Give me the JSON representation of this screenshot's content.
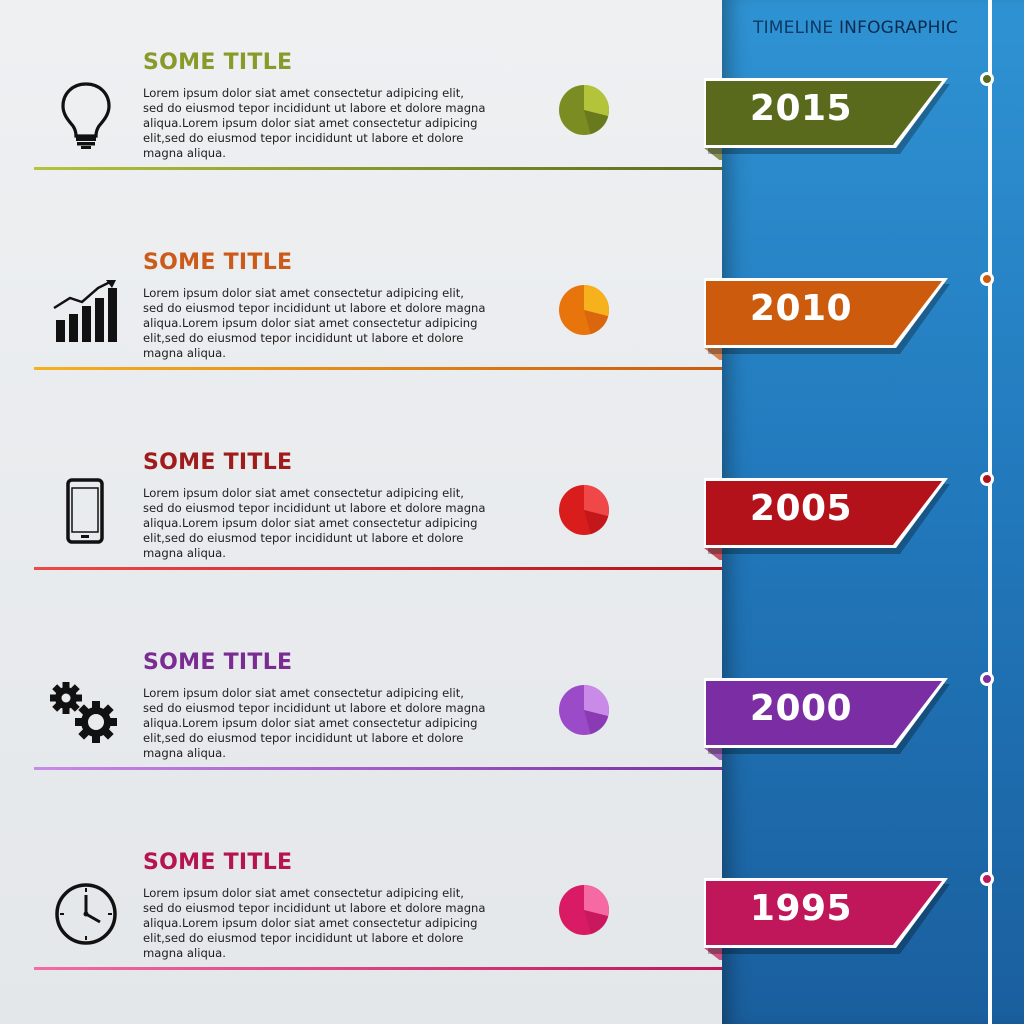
{
  "header": {
    "title_part1": "TIMELINE",
    "title_part2": "INFOGRAPHIC",
    "color_part1": "#0d3a66",
    "color_part2": "#0d2b4f"
  },
  "entries": [
    {
      "title": "SOME TITLE",
      "year": "2015",
      "icon": "lightbulb-icon",
      "color": "#8a9a2a",
      "ribbon_color": "#596a1c",
      "pie_color": "#7a8c22",
      "pie_light": "#b4c43a",
      "body": "Lorem ipsum dolor siat amet consectetur adipicing elit, sed do eiusmod tepor incididunt ut labore et dolore magna aliqua.Lorem ipsum dolor siat amet consectetur adipicing elit,sed do eiusmod tepor incididunt ut labore et dolore magna aliqua."
    },
    {
      "title": "SOME TITLE",
      "year": "2010",
      "icon": "bar-chart-icon",
      "color": "#cc5b1a",
      "ribbon_color": "#cd5b0e",
      "pie_color": "#e8740c",
      "pie_light": "#f7b11c",
      "body": "Lorem ipsum dolor siat amet consectetur adipicing elit, sed do eiusmod tepor incididunt ut labore et dolore magna aliqua.Lorem ipsum dolor siat amet consectetur adipicing elit,sed do eiusmod tepor incididunt ut labore et dolore magna aliqua."
    },
    {
      "title": "SOME TITLE",
      "year": "2005",
      "icon": "smartphone-icon",
      "color": "#a01c1c",
      "ribbon_color": "#b3121a",
      "pie_color": "#d91d1d",
      "pie_light": "#f04848",
      "body": "Lorem ipsum dolor siat amet consectetur adipicing elit, sed do eiusmod tepor incididunt ut labore et dolore magna aliqua.Lorem ipsum dolor siat amet consectetur adipicing elit,sed do eiusmod tepor incididunt ut labore et dolore magna aliqua."
    },
    {
      "title": "SOME TITLE",
      "year": "2000",
      "icon": "gears-icon",
      "color": "#7a2c92",
      "ribbon_color": "#7b2ea3",
      "pie_color": "#9c4bc8",
      "pie_light": "#c98ae8",
      "body": "Lorem ipsum dolor siat amet consectetur adipicing elit, sed do eiusmod tepor incididunt ut labore et dolore magna aliqua.Lorem ipsum dolor siat amet consectetur adipicing elit,sed do eiusmod tepor incididunt ut labore et dolore magna aliqua."
    },
    {
      "title": "SOME TITLE",
      "year": "1995",
      "icon": "clock-icon",
      "color": "#b5144f",
      "ribbon_color": "#c0165a",
      "pie_color": "#d81b64",
      "pie_light": "#f56aa3",
      "body": "Lorem ipsum dolor siat amet consectetur adipicing elit, sed do eiusmod tepor incididunt ut labore et dolore magna aliqua.Lorem ipsum dolor siat amet consectetur adipicing elit,sed do eiusmod tepor incididunt ut labore et dolore magna aliqua."
    }
  ]
}
